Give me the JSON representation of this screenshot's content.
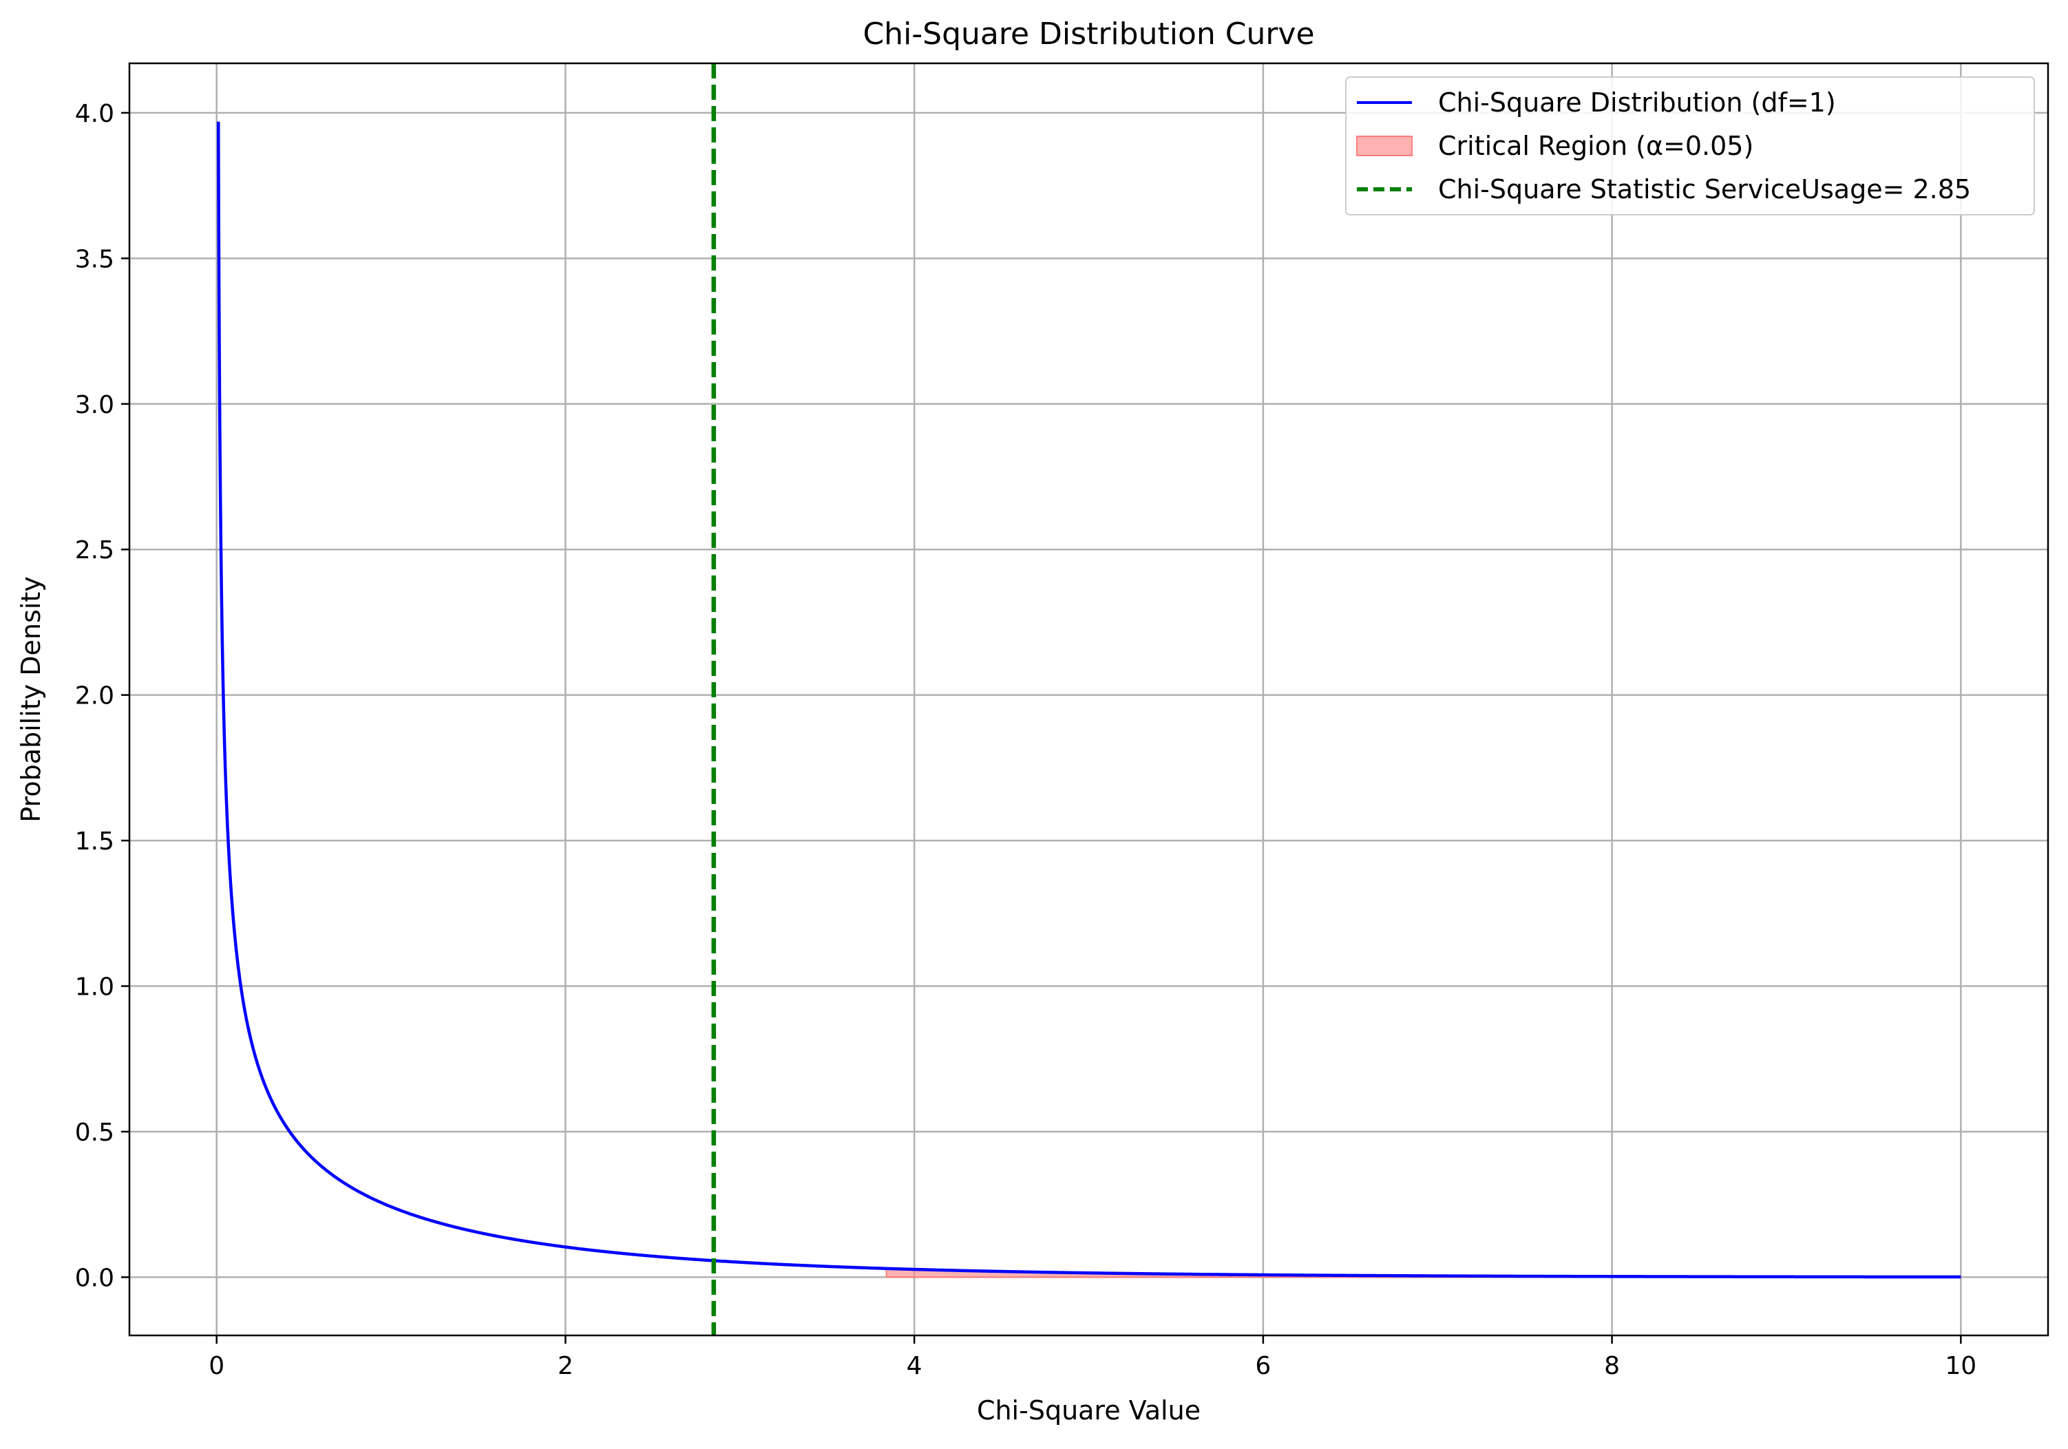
{
  "chart_data": {
    "type": "line",
    "title": "Chi-Square Distribution Curve",
    "xlabel": "Chi-Square Value",
    "ylabel": "Probability Density",
    "xlim": [
      -0.5,
      10.5
    ],
    "ylim": [
      -0.2,
      4.17
    ],
    "xticks": [
      0,
      2,
      4,
      6,
      8,
      10
    ],
    "xtick_labels": [
      "0",
      "2",
      "4",
      "6",
      "8",
      "10"
    ],
    "yticks": [
      0.0,
      0.5,
      1.0,
      1.5,
      2.0,
      2.5,
      3.0,
      3.5,
      4.0
    ],
    "ytick_labels": [
      "0.0",
      "0.5",
      "1.0",
      "1.5",
      "2.0",
      "2.5",
      "3.0",
      "3.5",
      "4.0"
    ],
    "grid": true,
    "legend_position": "top-right",
    "curve": {
      "name": "Chi-Square Distribution (df=1)",
      "color": "#0000ff",
      "df": 1,
      "x_range": [
        0.01,
        10
      ]
    },
    "critical_region": {
      "name": "Critical Region (α=0.05)",
      "color": "#ff7f7f",
      "x_start": 3.84,
      "x_end": 10
    },
    "statistic_line": {
      "name": "Chi-Square Statistic ServiceUsage= 2.85",
      "color": "#008000",
      "x": 2.85
    },
    "legend": [
      "Chi-Square Distribution (df=1)",
      "Critical Region (α=0.05)",
      "Chi-Square Statistic ServiceUsage= 2.85"
    ]
  }
}
